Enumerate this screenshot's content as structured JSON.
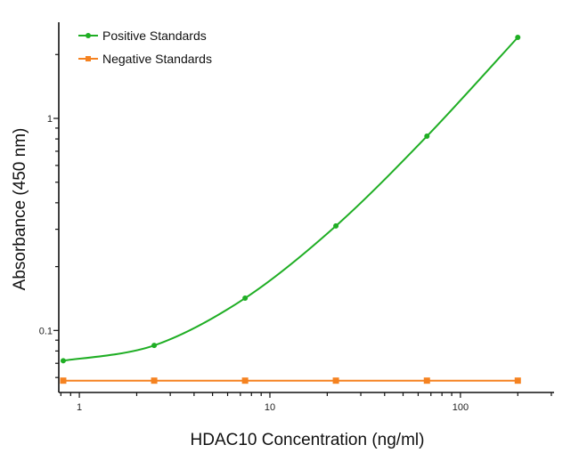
{
  "chart_data": {
    "type": "line",
    "title": "",
    "xlabel": "HDAC10 Concentration (ng/ml)",
    "ylabel": "Absorbance (450 nm)",
    "xscale": "log",
    "yscale": "log",
    "xlim": [
      0.78,
      310
    ],
    "ylim": [
      0.051,
      2.84
    ],
    "x_ticks": [
      {
        "value": 1,
        "label": "1"
      },
      {
        "value": 10,
        "label": "10"
      },
      {
        "value": 100,
        "label": "100"
      }
    ],
    "y_ticks": [
      {
        "value": 0.1,
        "label": "0.1"
      },
      {
        "value": 1,
        "label": "1"
      }
    ],
    "grid": false,
    "legend_position": "top-left",
    "x": [
      0.823,
      2.47,
      7.41,
      22.2,
      66.7,
      200
    ],
    "series": [
      {
        "name": "Positive Standards",
        "color": "#1fae24",
        "marker": "circle",
        "values": [
          0.072,
          0.085,
          0.142,
          0.311,
          0.824,
          2.41
        ]
      },
      {
        "name": "Negative Standards",
        "color": "#f58220",
        "marker": "square",
        "values": [
          0.058,
          0.058,
          0.058,
          0.058,
          0.058,
          0.058
        ]
      }
    ]
  }
}
